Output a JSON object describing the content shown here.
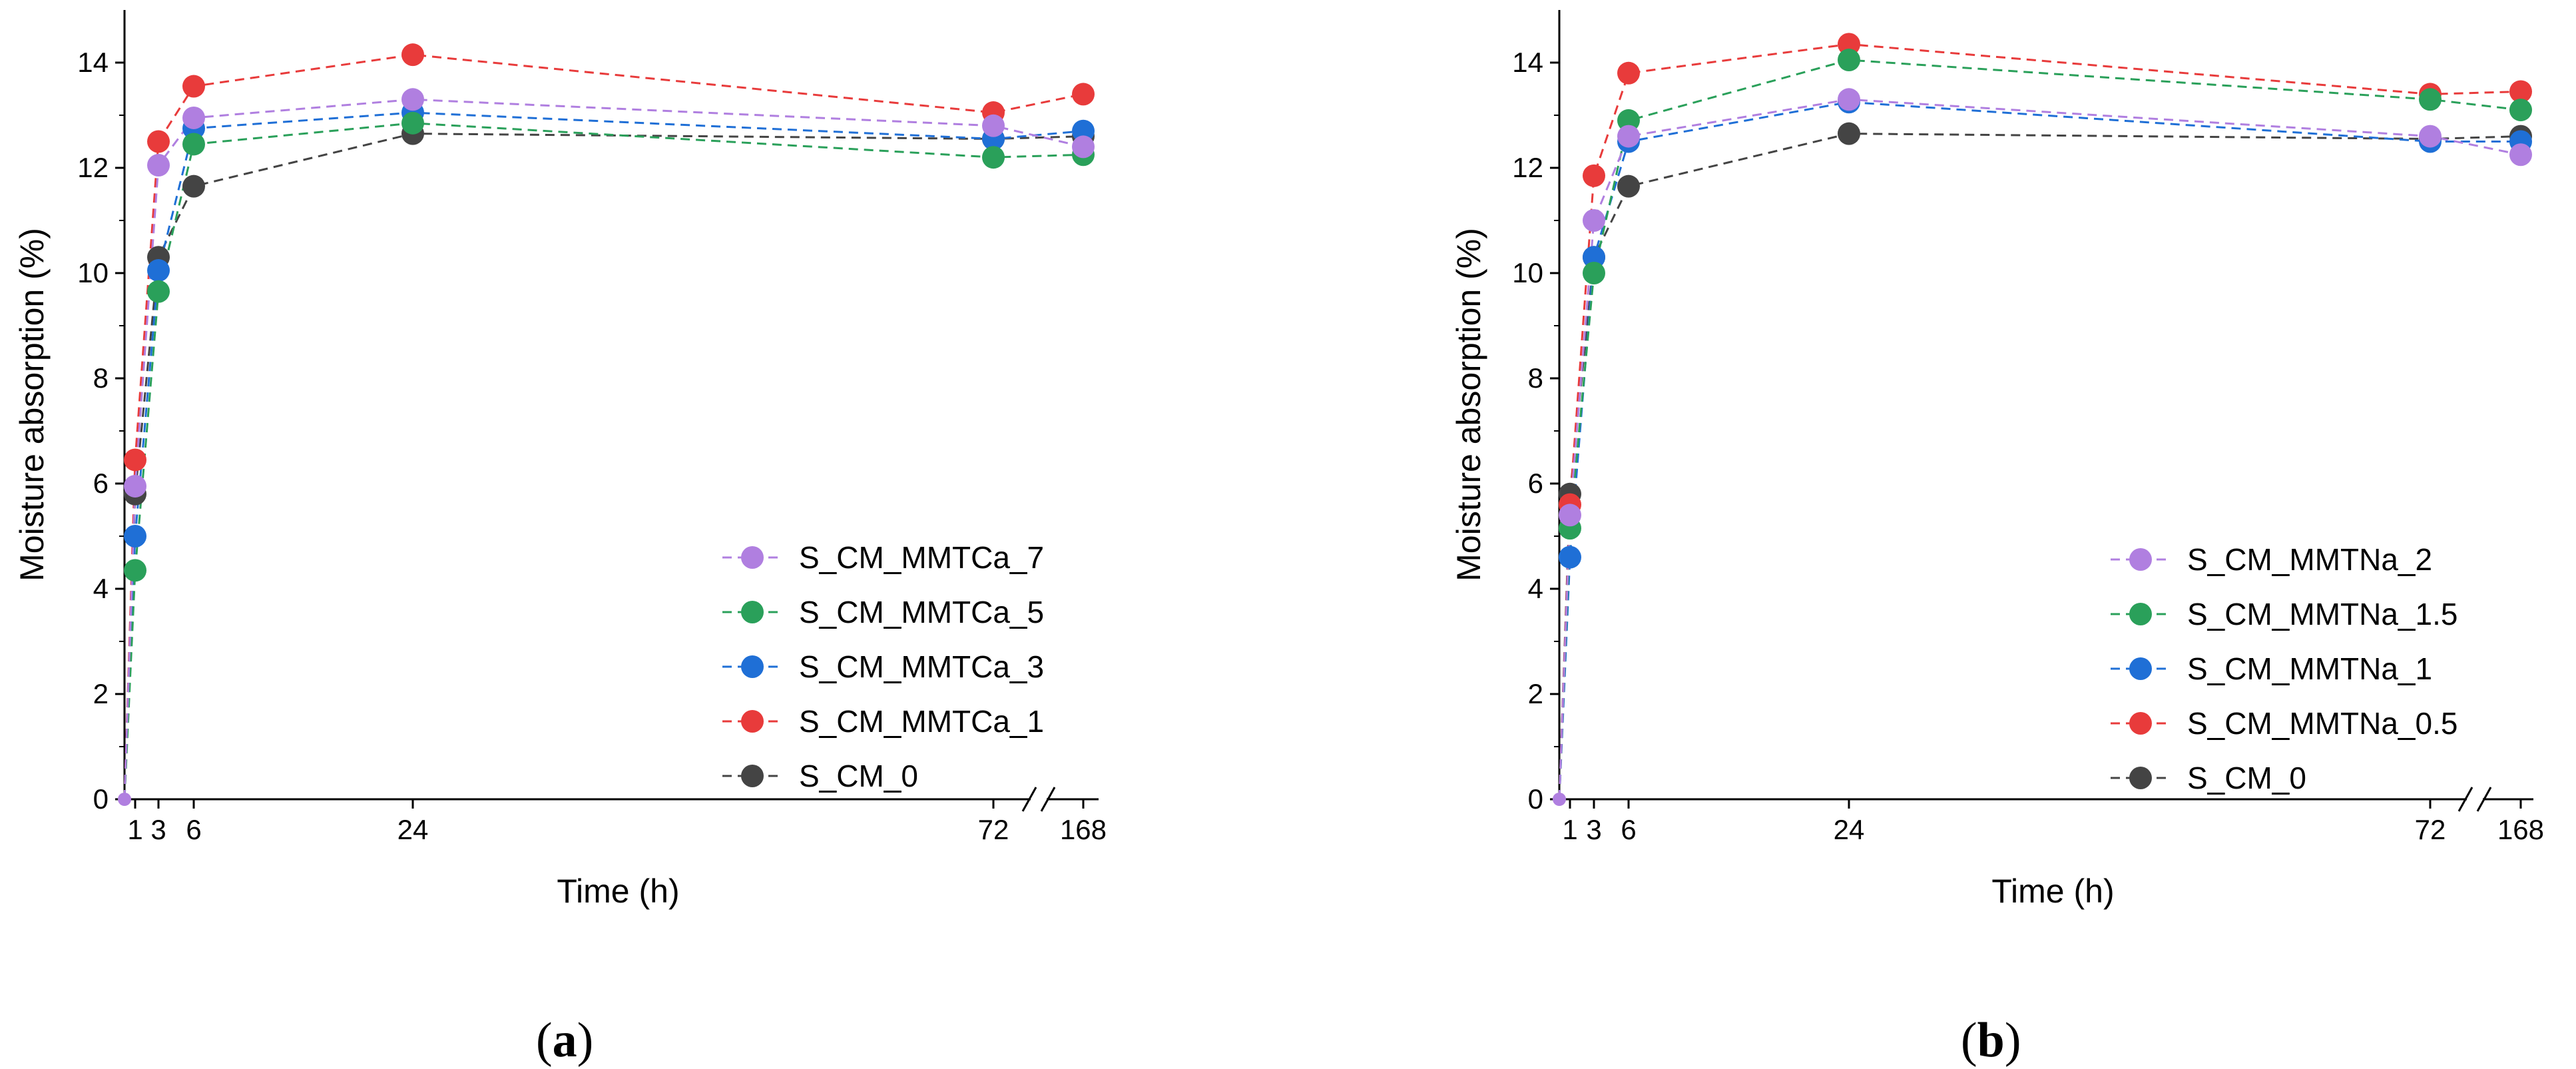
{
  "chart_data": [
    {
      "type": "line",
      "panel_label": "a",
      "xlabel": "Time (h)",
      "ylabel": "Moisture absorption (%)",
      "ylim": [
        0,
        15
      ],
      "yticks": [
        0,
        2,
        4,
        6,
        8,
        10,
        12,
        14
      ],
      "xticks": [
        "1",
        "3",
        "6",
        "24",
        "72",
        "168"
      ],
      "x": [
        0,
        1,
        3,
        6,
        24,
        72,
        168
      ],
      "axis_break": "between 72 and 168",
      "grid": false,
      "legend_position": "bottom-right",
      "series": [
        {
          "name": "S_CM_MMTCa_7",
          "color": "#b07fe0",
          "values": [
            0,
            5.95,
            12.05,
            12.95,
            13.3,
            12.8,
            12.4
          ]
        },
        {
          "name": "S_CM_MMTCa_5",
          "color": "#2aa05a",
          "values": [
            0,
            4.35,
            9.65,
            12.45,
            12.85,
            12.2,
            12.25
          ]
        },
        {
          "name": "S_CM_MMTCa_3",
          "color": "#1f6fd6",
          "values": [
            0,
            5.0,
            10.05,
            12.75,
            13.05,
            12.55,
            12.7
          ]
        },
        {
          "name": "S_CM_MMTCa_1",
          "color": "#e83b3b",
          "values": [
            0,
            6.45,
            12.5,
            13.55,
            14.15,
            13.05,
            13.4
          ]
        },
        {
          "name": "S_CM_0",
          "color": "#444444",
          "values": [
            0,
            5.8,
            10.3,
            11.65,
            12.65,
            12.55,
            12.6
          ]
        }
      ]
    },
    {
      "type": "line",
      "panel_label": "b",
      "xlabel": "Time (h)",
      "ylabel": "Moisture absorption (%)",
      "ylim": [
        0,
        15
      ],
      "yticks": [
        0,
        2,
        4,
        6,
        8,
        10,
        12,
        14
      ],
      "xticks": [
        "1",
        "3",
        "6",
        "24",
        "72",
        "168"
      ],
      "x": [
        0,
        1,
        3,
        6,
        24,
        72,
        168
      ],
      "axis_break": "between 72 and 168",
      "grid": false,
      "legend_position": "bottom-right",
      "series": [
        {
          "name": "S_CM_MMTNa_2",
          "color": "#b07fe0",
          "values": [
            0,
            5.4,
            11.0,
            12.6,
            13.3,
            12.6,
            12.25
          ]
        },
        {
          "name": "S_CM_MMTNa_1.5",
          "color": "#2aa05a",
          "values": [
            0,
            5.15,
            10.0,
            12.9,
            14.05,
            13.3,
            13.1
          ]
        },
        {
          "name": "S_CM_MMTNa_1",
          "color": "#1f6fd6",
          "values": [
            0,
            4.6,
            10.3,
            12.5,
            13.25,
            12.5,
            12.5
          ]
        },
        {
          "name": "S_CM_MMTNa_0.5",
          "color": "#e83b3b",
          "values": [
            0,
            5.6,
            11.85,
            13.8,
            14.35,
            13.4,
            13.45
          ]
        },
        {
          "name": "S_CM_0",
          "color": "#444444",
          "values": [
            0,
            5.8,
            10.3,
            11.65,
            12.65,
            12.55,
            12.6
          ]
        }
      ]
    }
  ]
}
